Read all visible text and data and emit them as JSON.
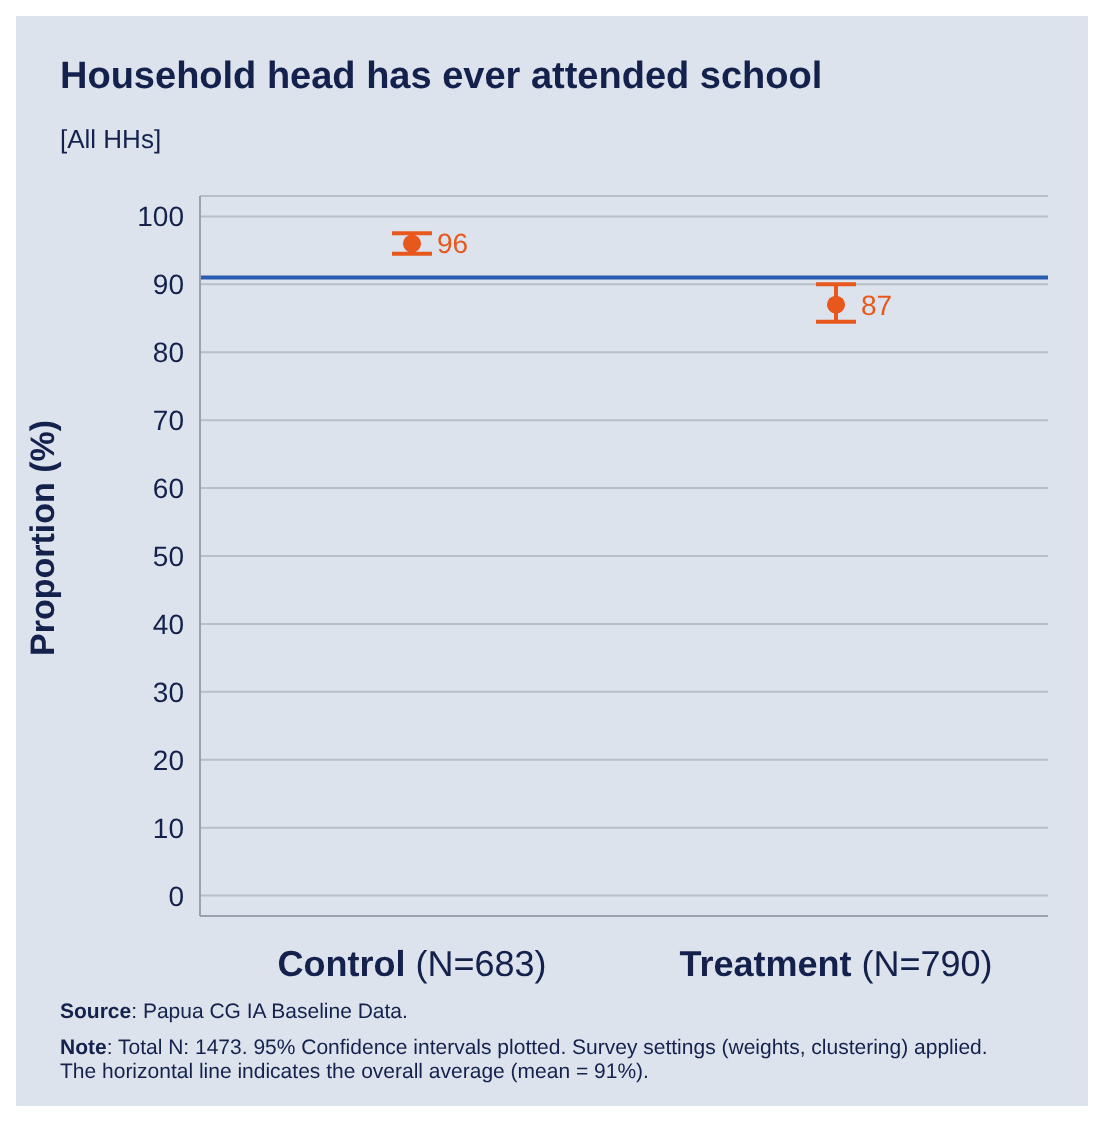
{
  "chart_data": {
    "type": "scatter",
    "title": "Household head has ever attended school",
    "subtitle": "[All HHs]",
    "ylabel": "Proportion (%)",
    "categories": [
      "Control (N=683)",
      "Treatment (N=790)"
    ],
    "values": [
      96,
      87
    ],
    "errors": [
      [
        94.5,
        97.5
      ],
      [
        84.5,
        90
      ]
    ],
    "color": "#e8581c",
    "data_labels": true,
    "marker": "circle",
    "ylim": [
      -3,
      103
    ],
    "yticks": [
      0,
      10,
      20,
      30,
      40,
      50,
      60,
      70,
      80,
      90,
      100
    ],
    "grid": "y",
    "legend": false,
    "ref_lines": [
      {
        "axis": "y",
        "value": 91,
        "color": "#2a5db0",
        "line_style": "solid"
      }
    ],
    "annotations": [
      "Source: Papua CG IA Baseline Data.",
      "Note: Total N: 1473. 95% Confidence intervals plotted. Survey settings (weights, clustering) applied.\nThe horizontal line indicates the overall average (mean = 91%)."
    ]
  }
}
